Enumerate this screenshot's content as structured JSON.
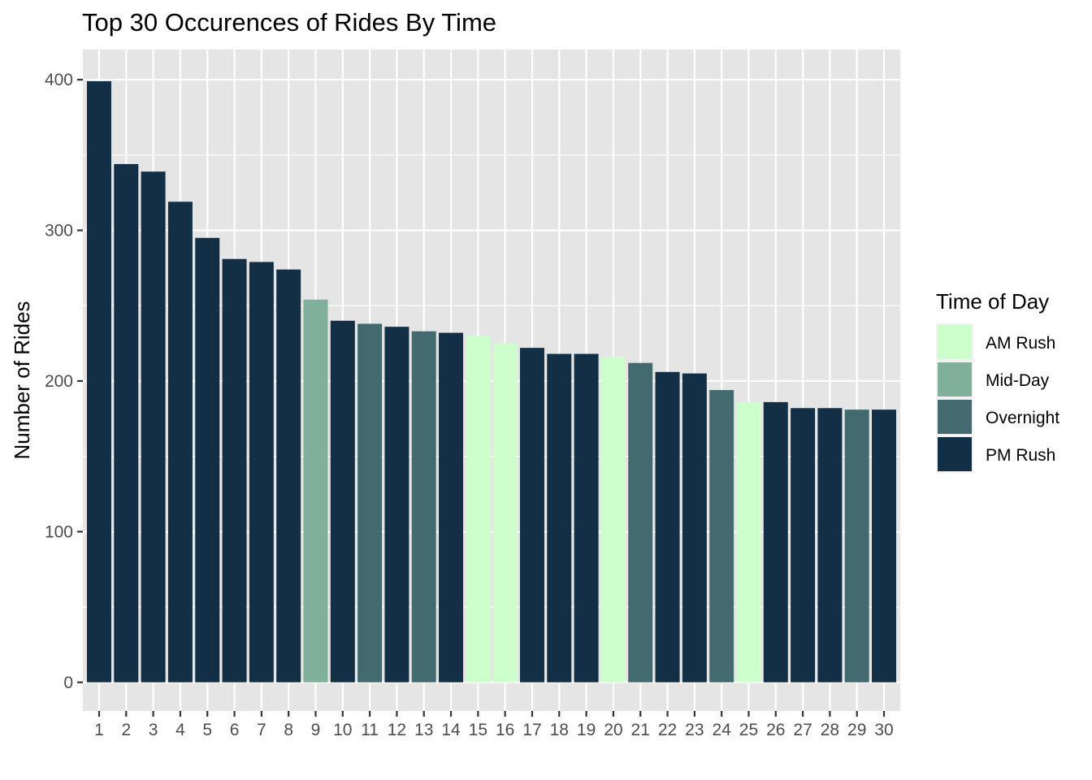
{
  "chart_data": {
    "type": "bar",
    "title": "Top 30 Occurences of Rides By Time",
    "xlabel": "",
    "ylabel": "Number of Rides",
    "categories": [
      "1",
      "2",
      "3",
      "4",
      "5",
      "6",
      "7",
      "8",
      "9",
      "10",
      "11",
      "12",
      "13",
      "14",
      "15",
      "16",
      "17",
      "18",
      "19",
      "20",
      "21",
      "22",
      "23",
      "24",
      "25",
      "26",
      "27",
      "28",
      "29",
      "30"
    ],
    "values": [
      399,
      344,
      339,
      319,
      295,
      281,
      279,
      274,
      254,
      240,
      238,
      236,
      233,
      232,
      230,
      225,
      222,
      218,
      218,
      216,
      212,
      206,
      205,
      194,
      186,
      186,
      182,
      182,
      181,
      181
    ],
    "groups": [
      "PM Rush",
      "PM Rush",
      "PM Rush",
      "PM Rush",
      "PM Rush",
      "PM Rush",
      "PM Rush",
      "PM Rush",
      "Mid-Day",
      "PM Rush",
      "Overnight",
      "PM Rush",
      "Overnight",
      "PM Rush",
      "AM Rush",
      "AM Rush",
      "PM Rush",
      "PM Rush",
      "PM Rush",
      "AM Rush",
      "Overnight",
      "PM Rush",
      "PM Rush",
      "Overnight",
      "AM Rush",
      "PM Rush",
      "PM Rush",
      "PM Rush",
      "Overnight",
      "PM Rush"
    ],
    "ylim": [
      -19,
      420
    ],
    "yticks": [
      0,
      100,
      200,
      300,
      400
    ],
    "grid": true,
    "legend": {
      "title": "Time of Day",
      "position": "right",
      "entries": [
        {
          "name": "AM Rush",
          "color": "#ccffcc"
        },
        {
          "name": "Mid-Day",
          "color": "#80b09a"
        },
        {
          "name": "Overnight",
          "color": "#436a6e"
        },
        {
          "name": "PM Rush",
          "color": "#132f46"
        }
      ]
    },
    "panel_background": "#e5e5e5",
    "grid_color": "#ffffff"
  }
}
